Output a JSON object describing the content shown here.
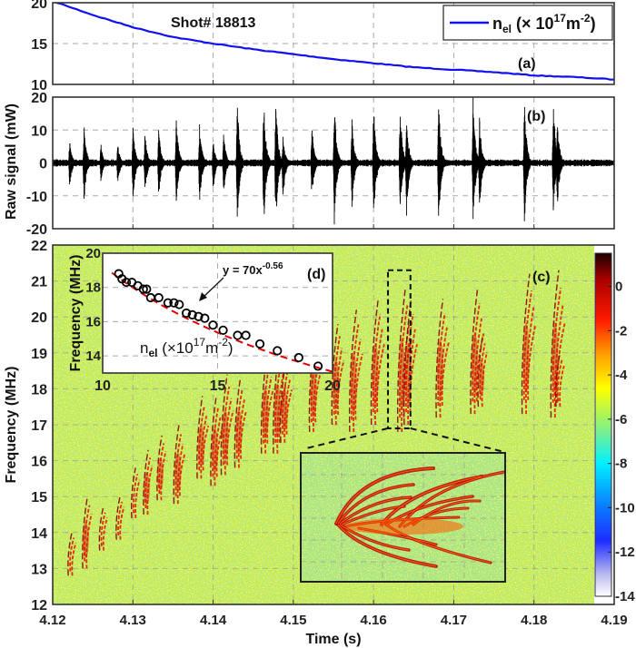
{
  "figure": {
    "shot_label": "Shot# 18813",
    "xlabel": "Time (s)"
  },
  "chart_data": [
    {
      "id": "a",
      "type": "line",
      "panel_label": "(a)",
      "xlim": [
        4.12,
        4.19
      ],
      "ylim": [
        10,
        20
      ],
      "yticks": [
        "10",
        "15",
        "20"
      ],
      "grid": true,
      "legend": {
        "placement": "top-right",
        "n": "n",
        "sub": "el",
        "pre": " (× 10",
        "sup": "17",
        "unit": "m",
        "unit_sup": "-2",
        "post": ")"
      },
      "series": [
        {
          "name": "n_el (× 10^17 m^-2)",
          "color": "#1010f0",
          "x": [
            4.12,
            4.125,
            4.13,
            4.135,
            4.14,
            4.145,
            4.15,
            4.155,
            4.16,
            4.165,
            4.17,
            4.175,
            4.18,
            4.185,
            4.19
          ],
          "y": [
            20.2,
            18.5,
            17.0,
            15.8,
            15.0,
            14.3,
            13.7,
            13.1,
            12.6,
            12.1,
            11.8,
            11.5,
            11.1,
            10.9,
            10.6
          ]
        }
      ]
    },
    {
      "id": "b",
      "type": "line",
      "panel_label": "(b)",
      "ylabel": "Raw signal (mW)",
      "xlim": [
        4.12,
        4.19
      ],
      "ylim": [
        -20,
        20
      ],
      "yticks": [
        "-20",
        "-10",
        "0",
        "10",
        "20"
      ],
      "grid": true,
      "color": "#000000",
      "noise_amplitude": 1,
      "bursts": [
        {
          "t": 4.1222,
          "max": 7,
          "min": -8
        },
        {
          "t": 4.124,
          "max": 12.5,
          "min": -12.5
        },
        {
          "t": 4.1261,
          "max": 6,
          "min": -6
        },
        {
          "t": 4.1282,
          "max": 6,
          "min": -7
        },
        {
          "t": 4.1301,
          "max": 11,
          "min": -11.5
        },
        {
          "t": 4.1316,
          "max": 9.5,
          "min": -10
        },
        {
          "t": 4.1333,
          "max": 11,
          "min": -11
        },
        {
          "t": 4.1355,
          "max": 14,
          "min": -14
        },
        {
          "t": 4.1384,
          "max": 12.5,
          "min": -13
        },
        {
          "t": 4.1401,
          "max": 7,
          "min": -9
        },
        {
          "t": 4.1414,
          "max": 9.5,
          "min": -10
        },
        {
          "t": 4.1431,
          "max": 20,
          "min": -20
        },
        {
          "t": 4.1464,
          "max": 20,
          "min": -20
        },
        {
          "t": 4.1479,
          "max": 20,
          "min": -20
        },
        {
          "t": 4.1488,
          "max": 8.5,
          "min": -12
        },
        {
          "t": 4.1524,
          "max": 12,
          "min": -12
        },
        {
          "t": 4.1552,
          "max": 19,
          "min": -19
        },
        {
          "t": 4.1574,
          "max": 14,
          "min": -15
        },
        {
          "t": 4.1601,
          "max": 18,
          "min": -20
        },
        {
          "t": 4.1634,
          "max": 18,
          "min": -15
        },
        {
          "t": 4.1642,
          "max": 15,
          "min": -17
        },
        {
          "t": 4.1682,
          "max": 20,
          "min": -20
        },
        {
          "t": 4.1725,
          "max": 20,
          "min": -20
        },
        {
          "t": 4.1733,
          "max": 14,
          "min": -16
        },
        {
          "t": 4.1789,
          "max": 20,
          "min": -20
        },
        {
          "t": 4.1825,
          "max": 20,
          "min": -15
        },
        {
          "t": 4.183,
          "max": 14,
          "min": -15
        }
      ]
    },
    {
      "id": "c",
      "type": "heatmap",
      "panel_label": "(c)",
      "ylabel": "Frequency (MHz)",
      "xlim": [
        4.12,
        4.19
      ],
      "ylim": [
        12,
        22
      ],
      "xticks": [
        "4.12",
        "4.13",
        "4.14",
        "4.15",
        "4.16",
        "4.17",
        "4.18",
        "4.19"
      ],
      "yticks": [
        "12",
        "13",
        "14",
        "15",
        "16",
        "17",
        "18",
        "19",
        "20",
        "21",
        "22"
      ],
      "grid": true,
      "clim": [
        -14,
        1.5
      ],
      "colorbar_ticks": [
        "0",
        "-2",
        "-4",
        "-6",
        "-8",
        "-10",
        "-12",
        "-14"
      ],
      "colormap": [
        {
          "value": -14,
          "color": "#ffffff"
        },
        {
          "value": -13,
          "color": "#b8b8f0"
        },
        {
          "value": -11.5,
          "color": "#1f2cff"
        },
        {
          "value": -10,
          "color": "#0a78ff"
        },
        {
          "value": -8,
          "color": "#00f0ff"
        },
        {
          "value": -6.5,
          "color": "#7ef08a"
        },
        {
          "value": -4.6,
          "color": "#ffff00"
        },
        {
          "value": -3,
          "color": "#ff9900"
        },
        {
          "value": -1.5,
          "color": "#ff1a00"
        },
        {
          "value": 0.3,
          "color": "#aa0000"
        },
        {
          "value": 1.5,
          "color": "#1a0000"
        }
      ],
      "background_level": -5.5,
      "bursts": [
        {
          "t": 4.1222,
          "f_min": 12.8,
          "f_max": 14.0
        },
        {
          "t": 4.124,
          "f_min": 13.0,
          "f_max": 15.0
        },
        {
          "t": 4.1261,
          "f_min": 13.5,
          "f_max": 14.7
        },
        {
          "t": 4.1282,
          "f_min": 13.8,
          "f_max": 15.0
        },
        {
          "t": 4.1301,
          "f_min": 14.4,
          "f_max": 15.8
        },
        {
          "t": 4.1316,
          "f_min": 14.5,
          "f_max": 16.3
        },
        {
          "t": 4.1333,
          "f_min": 14.9,
          "f_max": 16.7
        },
        {
          "t": 4.1355,
          "f_min": 14.8,
          "f_max": 17.0
        },
        {
          "t": 4.1384,
          "f_min": 15.5,
          "f_max": 17.8
        },
        {
          "t": 4.1401,
          "f_min": 15.3,
          "f_max": 17.8
        },
        {
          "t": 4.1414,
          "f_min": 15.6,
          "f_max": 18.4
        },
        {
          "t": 4.1431,
          "f_min": 15.8,
          "f_max": 18.3
        },
        {
          "t": 4.1464,
          "f_min": 16.2,
          "f_max": 19.0
        },
        {
          "t": 4.1479,
          "f_min": 16.2,
          "f_max": 19.2
        },
        {
          "t": 4.1488,
          "f_min": 16.5,
          "f_max": 18.8
        },
        {
          "t": 4.1524,
          "f_min": 16.8,
          "f_max": 19.5
        },
        {
          "t": 4.1552,
          "f_min": 17.0,
          "f_max": 19.8
        },
        {
          "t": 4.1574,
          "f_min": 16.8,
          "f_max": 20.2
        },
        {
          "t": 4.1601,
          "f_min": 17.0,
          "f_max": 20.5
        },
        {
          "t": 4.1634,
          "f_min": 16.8,
          "f_max": 20.8
        },
        {
          "t": 4.1642,
          "f_min": 17.0,
          "f_max": 20.5
        },
        {
          "t": 4.1682,
          "f_min": 17.2,
          "f_max": 20.5
        },
        {
          "t": 4.1725,
          "f_min": 17.3,
          "f_max": 20.8
        },
        {
          "t": 4.1733,
          "f_min": 17.5,
          "f_max": 19.5
        },
        {
          "t": 4.1789,
          "f_min": 17.3,
          "f_max": 21.2
        },
        {
          "t": 4.1825,
          "f_min": 17.2,
          "f_max": 21.3
        },
        {
          "t": 4.183,
          "f_min": 17.5,
          "f_max": 19.0
        }
      ],
      "zoom_region": {
        "t": [
          4.1618,
          4.1646
        ],
        "f": [
          16.9,
          21.3
        ]
      }
    },
    {
      "id": "d",
      "type": "scatter",
      "panel_label": "(d)",
      "ylabel": "Frequency (MHz)",
      "xlabel": {
        "n": "n",
        "sub": "el",
        "pre": " (×10",
        "sup": "17",
        "unit": "m",
        "unit_sup": "-2",
        "post": ")"
      },
      "xlim": [
        10,
        20
      ],
      "ylim": [
        13,
        20
      ],
      "xticks": [
        "10",
        "15",
        "20"
      ],
      "yticks": [
        "14",
        "16",
        "18",
        "20"
      ],
      "grid": true,
      "marker_color": "#000000",
      "fit": {
        "a": 70,
        "b": -0.56,
        "color": "#e00000",
        "label_base": "y = 70x",
        "label_sup": "-0.56"
      },
      "x": [
        10.7,
        10.84,
        11.03,
        11.27,
        11.53,
        11.77,
        11.91,
        12.09,
        12.44,
        12.84,
        13.1,
        13.33,
        13.64,
        13.9,
        14.17,
        14.44,
        14.8,
        15.24,
        15.87,
        16.23,
        16.84,
        17.6,
        18.53,
        19.37
      ],
      "y": [
        18.8,
        18.5,
        18.3,
        18.3,
        18.1,
        17.9,
        17.9,
        17.4,
        17.4,
        17.1,
        17.1,
        17.0,
        16.5,
        16.4,
        16.3,
        16.2,
        15.8,
        15.5,
        15.2,
        15.2,
        14.7,
        14.3,
        13.9,
        13.4
      ]
    }
  ]
}
